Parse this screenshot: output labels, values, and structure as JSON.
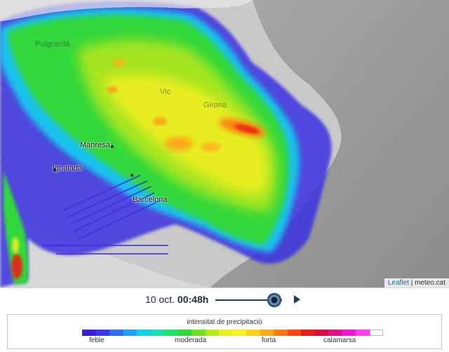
{
  "map": {
    "cities": [
      {
        "name": "Manresa"
      },
      {
        "name": "Igualada"
      },
      {
        "name": "Vic"
      },
      {
        "name": "Girona"
      },
      {
        "name": "Puigcerdà"
      },
      {
        "name": "Barcelona"
      }
    ],
    "attribution": {
      "leaflet": "Leaflet",
      "separator": "|",
      "source": "meteo.cat"
    },
    "background_color": "#bdbdbd",
    "sea_color": "#9a9a9a"
  },
  "controls": {
    "date": "10 oct.",
    "time": "00:48h",
    "slider_position": 0.88,
    "play_icon": "play-icon",
    "handle_icon": "slider-handle"
  },
  "legend": {
    "title": "intensitat de precipitació",
    "labels": {
      "feble": "feble",
      "moderada": "moderada",
      "forta": "forta",
      "calamarsa": "calamarsa"
    },
    "colors": [
      "#3c1ed8",
      "#3a3ae8",
      "#2e6ef0",
      "#1ea0ff",
      "#12d2e8",
      "#18e2b0",
      "#24e06a",
      "#2ed838",
      "#70e020",
      "#b4e818",
      "#e8f020",
      "#fff020",
      "#ffd020",
      "#ffa818",
      "#ff7a10",
      "#ff4810",
      "#ec1c18",
      "#d80c40",
      "#e0108c",
      "#f018d8",
      "#ff40f8",
      "#ffffff"
    ]
  }
}
